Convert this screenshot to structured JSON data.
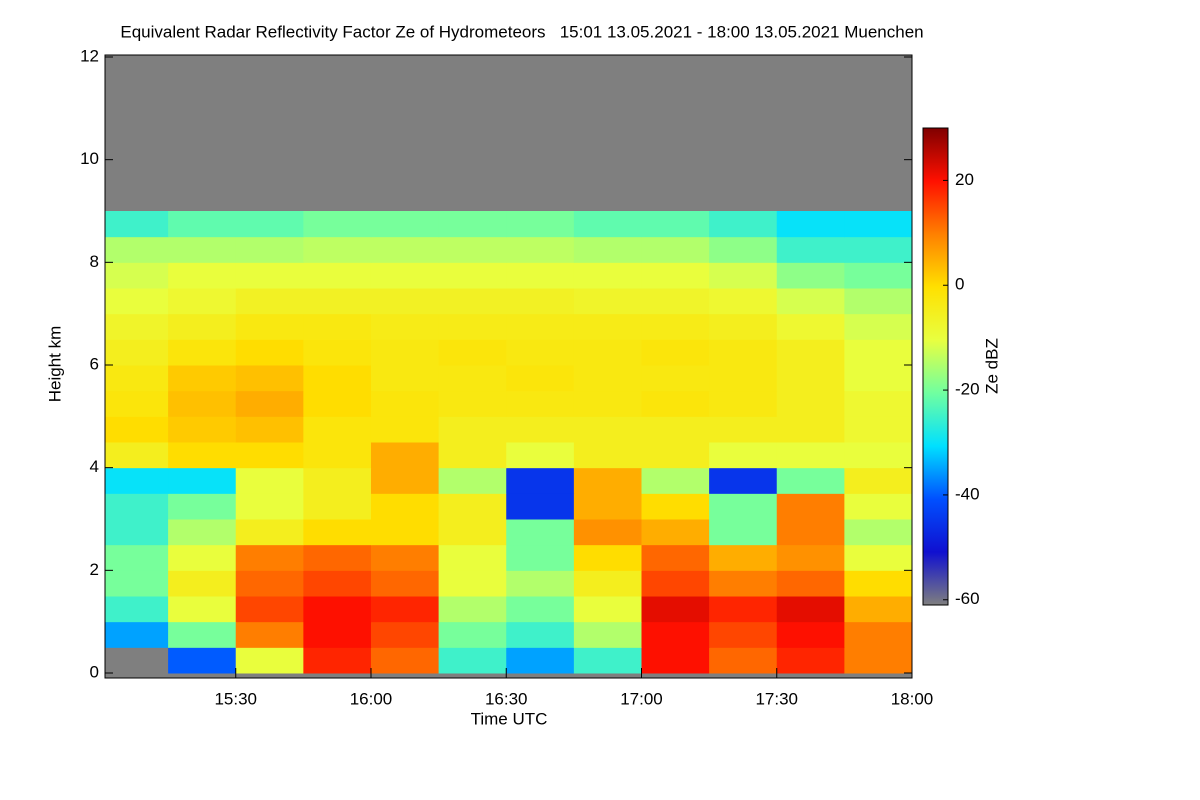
{
  "chart_data": {
    "type": "heatmap",
    "title": "Equivalent Radar Reflectivity Factor Ze of Hydrometeors   15:01 13.05.2021 - 18:00 13.05.2021 Muenchen",
    "xlabel": "Time UTC",
    "ylabel": "Height km",
    "colorbar_label": "Ze dBZ",
    "xlim": [
      15.0167,
      18.0
    ],
    "xticks": [
      {
        "value": 15.5,
        "label": "15:30"
      },
      {
        "value": 16.0,
        "label": "16:00"
      },
      {
        "value": 16.5,
        "label": "16:30"
      },
      {
        "value": 17.0,
        "label": "17:00"
      },
      {
        "value": 17.5,
        "label": "17:30"
      },
      {
        "value": 18.0,
        "label": "18:00"
      }
    ],
    "ylim": [
      0,
      12
    ],
    "yticks": [
      0,
      2,
      4,
      6,
      8,
      10,
      12
    ],
    "zlim": [
      -61,
      30
    ],
    "zticks": [
      -60,
      -40,
      -20,
      0,
      20
    ],
    "x_bins": [
      15.0167,
      15.25,
      15.5,
      15.75,
      16.0,
      16.25,
      16.5,
      16.75,
      17.0,
      17.25,
      17.5,
      17.75,
      18.0
    ],
    "y_bins": [
      0,
      0.5,
      1,
      1.5,
      2,
      2.5,
      3,
      3.5,
      4,
      4.5,
      5,
      5.5,
      6,
      6.5,
      7,
      7.5,
      8,
      8.5,
      9
    ],
    "z": [
      [
        null,
        -40,
        -10,
        18,
        12,
        -25,
        -35,
        -25,
        20,
        12,
        18,
        10
      ],
      [
        -35,
        -20,
        10,
        20,
        15,
        -20,
        -25,
        -15,
        20,
        15,
        20,
        10
      ],
      [
        -25,
        -10,
        15,
        20,
        18,
        -15,
        -20,
        -10,
        22,
        18,
        22,
        5
      ],
      [
        -20,
        -5,
        12,
        15,
        12,
        -10,
        -15,
        -5,
        15,
        10,
        12,
        0
      ],
      [
        -20,
        -10,
        10,
        12,
        10,
        -10,
        -20,
        0,
        12,
        5,
        8,
        -10
      ],
      [
        -25,
        -15,
        -5,
        0,
        0,
        -5,
        -20,
        8,
        5,
        -20,
        10,
        -15
      ],
      [
        -25,
        -20,
        -10,
        -5,
        0,
        -5,
        -45,
        5,
        0,
        -20,
        10,
        -10
      ],
      [
        -30,
        -30,
        -10,
        -5,
        5,
        -15,
        -45,
        5,
        -15,
        -45,
        -20,
        -5
      ],
      [
        -5,
        0,
        0,
        -2,
        5,
        -5,
        -10,
        -5,
        -5,
        -10,
        -10,
        -10
      ],
      [
        0,
        2,
        3,
        -2,
        -2,
        -5,
        -5,
        -5,
        -5,
        -5,
        -5,
        -8
      ],
      [
        -2,
        3,
        5,
        0,
        -2,
        -3,
        -3,
        -3,
        -2,
        -3,
        -5,
        -8
      ],
      [
        -3,
        2,
        3,
        0,
        -3,
        -3,
        -2,
        -3,
        -3,
        -3,
        -5,
        -10
      ],
      [
        -5,
        -2,
        0,
        -2,
        -3,
        -2,
        -3,
        -3,
        -2,
        -3,
        -5,
        -10
      ],
      [
        -7,
        -5,
        -3,
        -3,
        -4,
        -4,
        -4,
        -4,
        -4,
        -5,
        -8,
        -12
      ],
      [
        -10,
        -8,
        -6,
        -6,
        -6,
        -6,
        -6,
        -7,
        -7,
        -8,
        -12,
        -15
      ],
      [
        -12,
        -10,
        -10,
        -10,
        -10,
        -10,
        -10,
        -10,
        -10,
        -12,
        -18,
        -20
      ],
      [
        -15,
        -15,
        -15,
        -14,
        -14,
        -14,
        -14,
        -15,
        -15,
        -18,
        -25,
        -25
      ],
      [
        -25,
        -22,
        -22,
        -20,
        -20,
        -20,
        -20,
        -22,
        -22,
        -25,
        -30,
        -30
      ]
    ],
    "colorscale": [
      "#7f7f7f",
      "#1010d0",
      "#0050ff",
      "#00e0ff",
      "#70ffa0",
      "#e8ff40",
      "#ffe000",
      "#ff8000",
      "#ff1000",
      "#800000"
    ],
    "missing_color": "#7f7f7f"
  }
}
